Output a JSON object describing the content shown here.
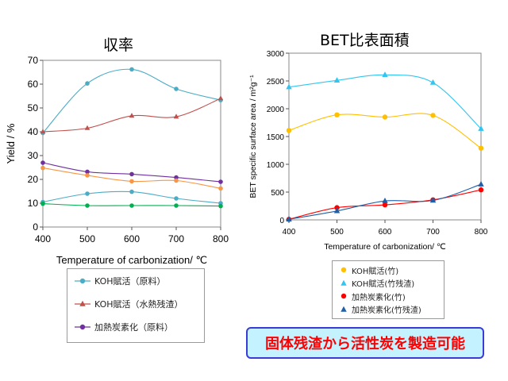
{
  "chart_data": [
    {
      "type": "line",
      "title": "収率",
      "xlabel": "Temperature of carbonization/ ℃",
      "ylabel": "Yield / %",
      "x": [
        400,
        500,
        600,
        700,
        800
      ],
      "xlim": [
        400,
        800
      ],
      "ylim": [
        0,
        70
      ],
      "xticks": [
        "400",
        "500",
        "600",
        "700",
        "800"
      ],
      "yticks": [
        "0",
        "10",
        "20",
        "30",
        "40",
        "50",
        "60",
        "70"
      ],
      "grid": false,
      "legend_position": "bottom",
      "series": [
        {
          "name": "KOH賦活（原料）",
          "color": "#4bacc6",
          "marker": "circle",
          "values": [
            39.5,
            60.3,
            66.2,
            58.0,
            53.3
          ]
        },
        {
          "name": "KOH賦活（水熱残渣）",
          "color": "#c0504d",
          "marker": "triangle",
          "values": [
            40.0,
            41.5,
            46.7,
            46.3,
            54.0
          ]
        },
        {
          "name": "加熱炭素化（原料）",
          "color": "#7030a0",
          "marker": "circle",
          "values": [
            27.0,
            23.2,
            22.2,
            20.8,
            19.0
          ]
        },
        {
          "name": "",
          "color": "#f79646",
          "marker": "circle",
          "values": [
            24.8,
            21.7,
            19.2,
            19.5,
            16.2
          ]
        },
        {
          "name": "",
          "color": "#4bacc6",
          "marker": "circle",
          "values": [
            10.5,
            14.0,
            14.8,
            12.0,
            10.0
          ]
        },
        {
          "name": "",
          "color": "#00b050",
          "marker": "circle",
          "values": [
            9.8,
            9.0,
            9.0,
            9.0,
            8.8
          ]
        }
      ]
    },
    {
      "type": "line",
      "title": "BET比表面積",
      "xlabel": "Temperature of carbonization/ ℃",
      "ylabel": "BET specific surface area / m²g⁻¹",
      "x": [
        400,
        500,
        600,
        700,
        800
      ],
      "xlim": [
        400,
        800
      ],
      "ylim": [
        0,
        3000
      ],
      "xticks": [
        "400",
        "500",
        "600",
        "700",
        "800"
      ],
      "yticks": [
        "0",
        "500",
        "1000",
        "1500",
        "2000",
        "2500",
        "3000"
      ],
      "grid": false,
      "legend_position": "bottom",
      "series": [
        {
          "name": "KOH賦活(竹)",
          "color": "#ffc000",
          "marker": "circle",
          "values": [
            1610,
            1890,
            1850,
            1880,
            1290
          ]
        },
        {
          "name": "KOH賦活(竹残渣)",
          "color": "#33c5f0",
          "marker": "triangle",
          "values": [
            2390,
            2510,
            2610,
            2470,
            1640
          ]
        },
        {
          "name": "加熱炭素化(竹)",
          "color": "#ff0000",
          "marker": "circle",
          "values": [
            10,
            220,
            270,
            360,
            540
          ]
        },
        {
          "name": "加熱炭素化(竹残渣)",
          "color": "#1f5fa8",
          "marker": "triangle",
          "values": [
            10,
            160,
            340,
            350,
            640
          ]
        }
      ]
    }
  ],
  "banner": {
    "text": "固体残渣から活性炭を製造可能"
  }
}
